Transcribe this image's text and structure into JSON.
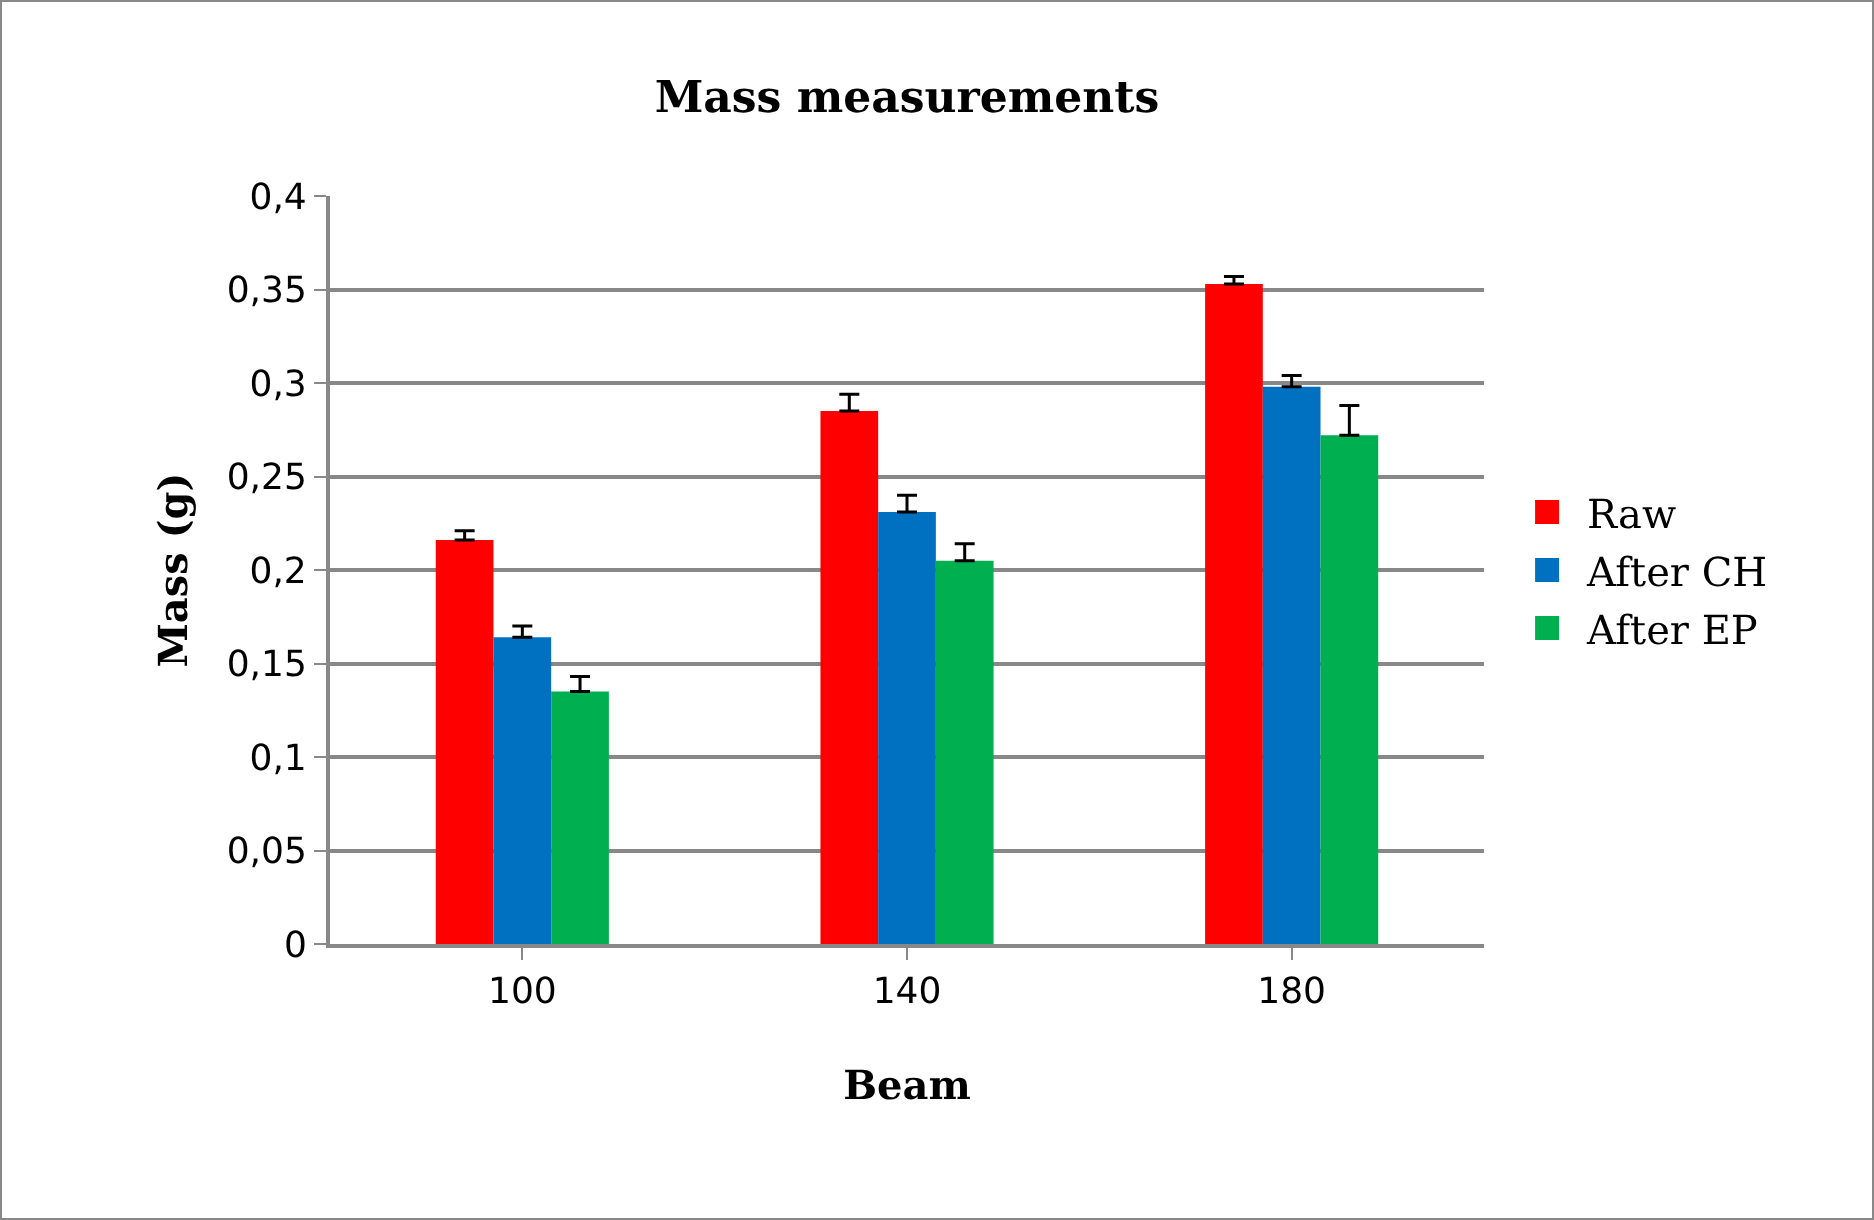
{
  "chart_data": {
    "type": "bar",
    "title": "Mass measurements",
    "xlabel": "Beam",
    "ylabel": "Mass (g)",
    "categories": [
      "100",
      "140",
      "180"
    ],
    "series": [
      {
        "name": "Raw",
        "color": "#ff0000",
        "values": [
          0.216,
          0.285,
          0.353
        ],
        "errors": [
          [
            0.216,
            0.221
          ],
          [
            0.285,
            0.294
          ],
          [
            0.353,
            0.357
          ]
        ]
      },
      {
        "name": "After CH",
        "color": "#0070c0",
        "values": [
          0.164,
          0.231,
          0.298
        ],
        "errors": [
          [
            0.164,
            0.17
          ],
          [
            0.231,
            0.24
          ],
          [
            0.298,
            0.304
          ]
        ]
      },
      {
        "name": "After EP",
        "color": "#00b050",
        "values": [
          0.135,
          0.205,
          0.272
        ],
        "errors": [
          [
            0.135,
            0.143
          ],
          [
            0.205,
            0.214
          ],
          [
            0.272,
            0.288
          ]
        ]
      }
    ],
    "ylim": [
      0,
      0.4
    ],
    "yticks": [
      0,
      {
        "value": 0.05,
        "label": "0,05"
      },
      {
        "value": 0.1,
        "label": "0,1"
      },
      {
        "value": 0.15,
        "label": "0,15"
      },
      {
        "value": 0.2,
        "label": "0,2"
      },
      {
        "value": 0.25,
        "label": "0,25"
      },
      {
        "value": 0.3,
        "label": "0,3"
      },
      {
        "value": 0.35,
        "label": "0,35"
      },
      {
        "value": 0.4,
        "label": "0,4"
      }
    ],
    "grid": "y",
    "legend": "right"
  }
}
